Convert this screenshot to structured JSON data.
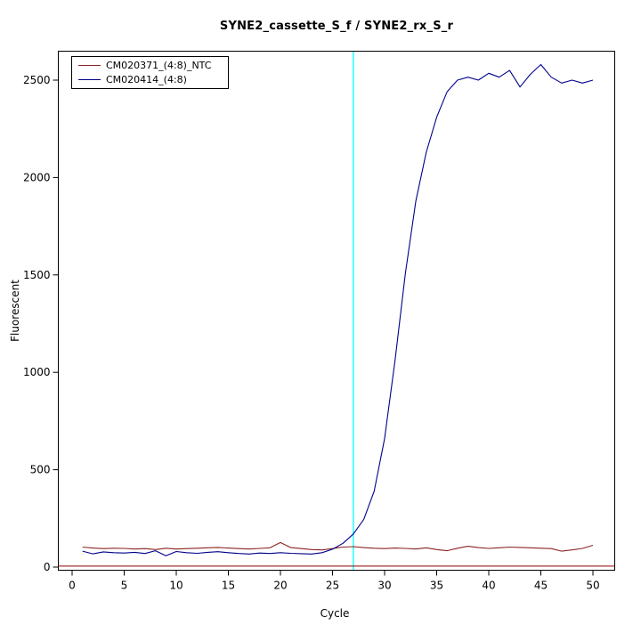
{
  "chart_data": {
    "type": "line",
    "title": "SYNE2_cassette_S_f / SYNE2_rx_S_r",
    "xlabel": "Cycle",
    "ylabel": "Fluorescent",
    "x_ticks": [
      0,
      5,
      10,
      15,
      20,
      25,
      30,
      35,
      40,
      45,
      50
    ],
    "y_ticks": [
      0,
      500,
      1000,
      1500,
      2000,
      2500
    ],
    "xlim": [
      -1.3,
      52.1
    ],
    "ylim": [
      -16,
      2650
    ],
    "grid": false,
    "legend_position": "top-left",
    "threshold_line": {
      "y": 5,
      "color": "#8b0000"
    },
    "ct_line": {
      "x": 27,
      "color": "#00ffff"
    },
    "x": [
      1,
      2,
      3,
      4,
      5,
      6,
      7,
      8,
      9,
      10,
      11,
      12,
      13,
      14,
      15,
      16,
      17,
      18,
      19,
      20,
      21,
      22,
      23,
      24,
      25,
      26,
      27,
      28,
      29,
      30,
      31,
      32,
      33,
      34,
      35,
      36,
      37,
      38,
      39,
      40,
      41,
      42,
      43,
      44,
      45,
      46,
      47,
      48,
      49,
      50
    ],
    "series": [
      {
        "name": "CM020371_(4:8)_NTC",
        "color": "#8b2323",
        "values": [
          103,
          98,
          95,
          97,
          96,
          93,
          95,
          90,
          97,
          93,
          95,
          97,
          99,
          101,
          98,
          95,
          93,
          96,
          99,
          126,
          100,
          95,
          90,
          88,
          95,
          103,
          105,
          100,
          97,
          95,
          98,
          96,
          93,
          99,
          90,
          84,
          97,
          107,
          100,
          96,
          99,
          103,
          101,
          99,
          97,
          95,
          82,
          88,
          96,
          112
        ]
      },
      {
        "name": "CM020414_(4:8)",
        "color": "#00008b",
        "values": [
          82,
          68,
          78,
          74,
          72,
          76,
          70,
          84,
          58,
          80,
          74,
          71,
          76,
          79,
          74,
          70,
          67,
          72,
          70,
          74,
          71,
          69,
          67,
          74,
          92,
          122,
          170,
          245,
          390,
          660,
          1060,
          1510,
          1880,
          2130,
          2310,
          2440,
          2500,
          2515,
          2500,
          2535,
          2515,
          2550,
          2465,
          2530,
          2580,
          2515,
          2485,
          2500,
          2485,
          2500
        ]
      }
    ]
  }
}
